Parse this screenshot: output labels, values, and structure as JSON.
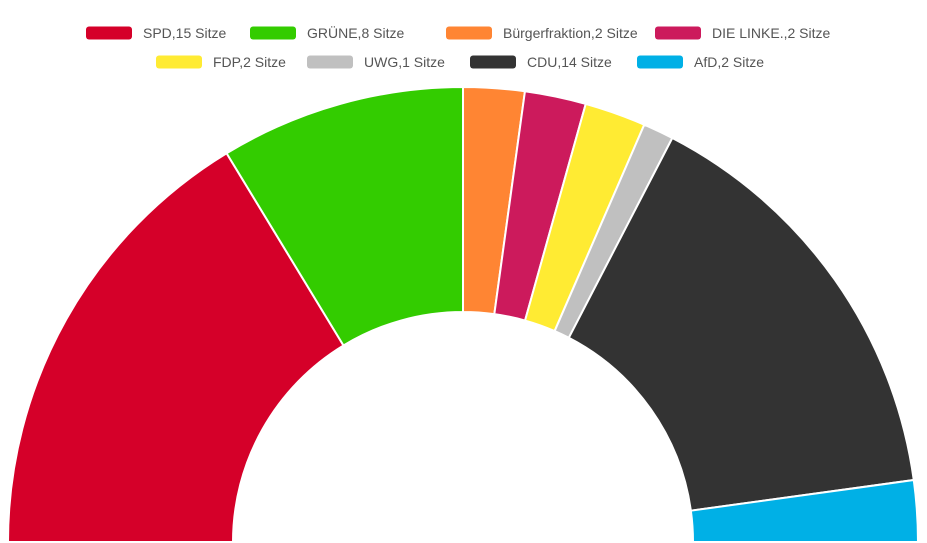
{
  "chart_data": {
    "type": "pie",
    "subtype": "semicircle-donut",
    "title": "",
    "categories": [
      "SPD",
      "GRÜNE",
      "Bürgerfraktion",
      "DIE LINKE.",
      "FDP",
      "UWG",
      "CDU",
      "AfD"
    ],
    "values": [
      15,
      8,
      2,
      2,
      2,
      1,
      14,
      2
    ],
    "legend_labels": [
      "SPD,15 Sitze",
      "GRÜNE,8 Sitze",
      "Bürgerfraktion,2 Sitze",
      "DIE LINKE.,2 Sitze",
      "FDP,2 Sitze",
      "UWG,1 Sitze",
      "CDU,14 Sitze",
      "AfD,2 Sitze"
    ],
    "colors": [
      "#d50029",
      "#33cc00",
      "#ff8533",
      "#cc1a5c",
      "#ffeb33",
      "#c0c0c0",
      "#333333",
      "#00b0e6"
    ],
    "legend_position": "top",
    "start_angle_deg": -90,
    "end_angle_deg": 90,
    "inner_radius_fraction": 0.5
  }
}
